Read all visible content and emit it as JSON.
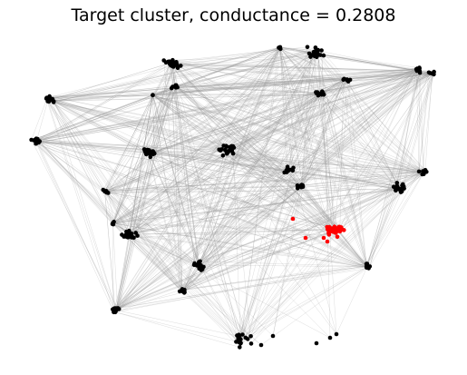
{
  "title": "Target cluster, conductance = 0.2808",
  "colors": {
    "background": "#ffffff",
    "node": "#000000",
    "target_node": "#ff0000",
    "edge": "#9a9a9a"
  },
  "graph": {
    "clusters": [
      {
        "id": "c1",
        "target": false
      },
      {
        "id": "c2",
        "target": false
      },
      {
        "id": "c3",
        "target": false
      },
      {
        "id": "c4",
        "target": false
      },
      {
        "id": "c5",
        "target": false
      },
      {
        "id": "c6",
        "target": false
      },
      {
        "id": "c7",
        "target": false
      },
      {
        "id": "c8",
        "target": false
      },
      {
        "id": "c9",
        "target": false
      },
      {
        "id": "c10",
        "target": false
      },
      {
        "id": "c11",
        "target": false
      },
      {
        "id": "c12",
        "target": false
      },
      {
        "id": "c13",
        "target": false
      },
      {
        "id": "c14",
        "target": false
      },
      {
        "id": "c15",
        "target": false
      },
      {
        "id": "c16",
        "target": false
      },
      {
        "id": "c17",
        "target": false
      },
      {
        "id": "c18",
        "target": false
      },
      {
        "id": "c19",
        "target": false
      },
      {
        "id": "c20",
        "target": false
      },
      {
        "id": "c21",
        "target": false
      },
      {
        "id": "c22",
        "target": true
      },
      {
        "id": "c23",
        "target": false
      },
      {
        "id": "c24",
        "target": false
      },
      {
        "id": "c25",
        "target": false
      },
      {
        "id": "c26",
        "target": false
      }
    ]
  }
}
